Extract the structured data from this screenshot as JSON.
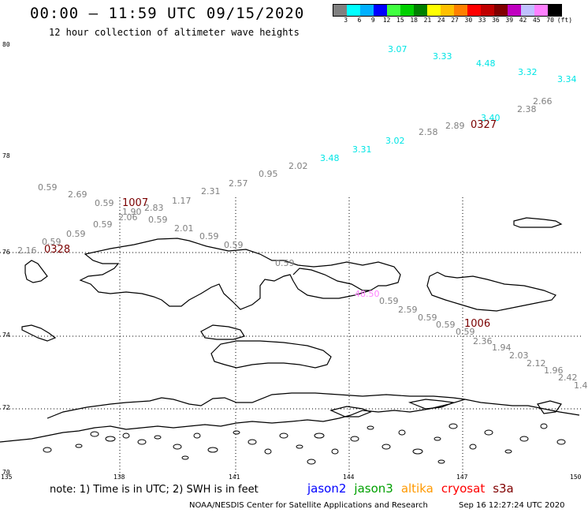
{
  "title": "00:00 – 11:59 UTC 09/15/2020",
  "subtitle": "12 hour collection of altimeter wave heights",
  "legend": {
    "labels": [
      "3",
      "6",
      "9",
      "12",
      "15",
      "18",
      "21",
      "24",
      "27",
      "30",
      "33",
      "36",
      "39",
      "42",
      "45",
      "70",
      "(ft)"
    ],
    "colors": [
      "#808080",
      "#00ffff",
      "#00b0ff",
      "#0000ff",
      "#40ff40",
      "#00d000",
      "#008000",
      "#ffff00",
      "#ffc000",
      "#ff8000",
      "#ff0000",
      "#c00000",
      "#800000",
      "#c000c0",
      "#c0c0ff",
      "#ff80ff",
      "#000000"
    ]
  },
  "axes": {
    "lat_labels": [
      {
        "text": "80"
      },
      {
        "text": "78"
      },
      {
        "text": "76"
      },
      {
        "text": "74"
      },
      {
        "text": "72"
      },
      {
        "text": "70"
      }
    ],
    "lon_labels": [
      {
        "text": "135"
      },
      {
        "text": "138"
      },
      {
        "text": "141"
      },
      {
        "text": "144"
      },
      {
        "text": "147"
      },
      {
        "text": "150"
      }
    ]
  },
  "wave_heights": [
    {
      "v": "3.07",
      "c": "#00e5e5"
    },
    {
      "v": "3.33",
      "c": "#00e5e5"
    },
    {
      "v": "4.48",
      "c": "#00e5e5"
    },
    {
      "v": "3.32",
      "c": "#00e5e5"
    },
    {
      "v": "3.34",
      "c": "#00e5e5"
    },
    {
      "v": "2.66",
      "c": "#808080"
    },
    {
      "v": "2.38",
      "c": "#808080"
    },
    {
      "v": "3.40",
      "c": "#00e5e5"
    },
    {
      "v": "2.89",
      "c": "#808080"
    },
    {
      "v": "2.58",
      "c": "#808080"
    },
    {
      "v": "3.02",
      "c": "#00e5e5"
    },
    {
      "v": "3.31",
      "c": "#00e5e5"
    },
    {
      "v": "3.48",
      "c": "#00e5e5"
    },
    {
      "v": "2.02",
      "c": "#808080"
    },
    {
      "v": "0.95",
      "c": "#808080"
    },
    {
      "v": "2.57",
      "c": "#808080"
    },
    {
      "v": "2.31",
      "c": "#808080"
    },
    {
      "v": "1.17",
      "c": "#808080"
    },
    {
      "v": "0.59",
      "c": "#808080"
    },
    {
      "v": "2.69",
      "c": "#808080"
    },
    {
      "v": "0.59",
      "c": "#808080"
    },
    {
      "v": "1.90",
      "c": "#808080"
    },
    {
      "v": "2.83",
      "c": "#808080"
    },
    {
      "v": "2.06",
      "c": "#808080"
    },
    {
      "v": "0.59",
      "c": "#808080"
    },
    {
      "v": "0.59",
      "c": "#808080"
    },
    {
      "v": "2.01",
      "c": "#808080"
    },
    {
      "v": "0.59",
      "c": "#808080"
    },
    {
      "v": "0.59",
      "c": "#808080"
    },
    {
      "v": "0.59",
      "c": "#808080"
    },
    {
      "v": "2.16",
      "c": "#808080"
    },
    {
      "v": "0.59",
      "c": "#808080"
    },
    {
      "v": "0.59",
      "c": "#808080"
    },
    {
      "v": "48.50",
      "c": "#ff80ff"
    },
    {
      "v": "0.59",
      "c": "#808080"
    },
    {
      "v": "2.59",
      "c": "#808080"
    },
    {
      "v": "0.59",
      "c": "#808080"
    },
    {
      "v": "0.59",
      "c": "#808080"
    },
    {
      "v": "0.59",
      "c": "#808080"
    },
    {
      "v": "2.36",
      "c": "#808080"
    },
    {
      "v": "1.94",
      "c": "#808080"
    },
    {
      "v": "2.03",
      "c": "#808080"
    },
    {
      "v": "2.12",
      "c": "#808080"
    },
    {
      "v": "1.96",
      "c": "#808080"
    },
    {
      "v": "2.42",
      "c": "#808080"
    },
    {
      "v": "1.4",
      "c": "#808080"
    }
  ],
  "pass_ids": [
    "0327",
    "1007",
    "0328",
    "1006"
  ],
  "note": "note: 1) Time is in UTC; 2) SWH is in feet",
  "satellites": [
    {
      "name": "jason2",
      "color": "#0000ff"
    },
    {
      "name": "jason3",
      "color": "#00a000"
    },
    {
      "name": "altika",
      "color": "#ff9900"
    },
    {
      "name": "cryosat",
      "color": "#ff0000"
    },
    {
      "name": "s3a",
      "color": "#800000"
    }
  ],
  "credit": "NOAA/NESDIS Center for Satellite Applications and Research",
  "timestamp": "Sep 16 12:27:24 UTC 2020"
}
